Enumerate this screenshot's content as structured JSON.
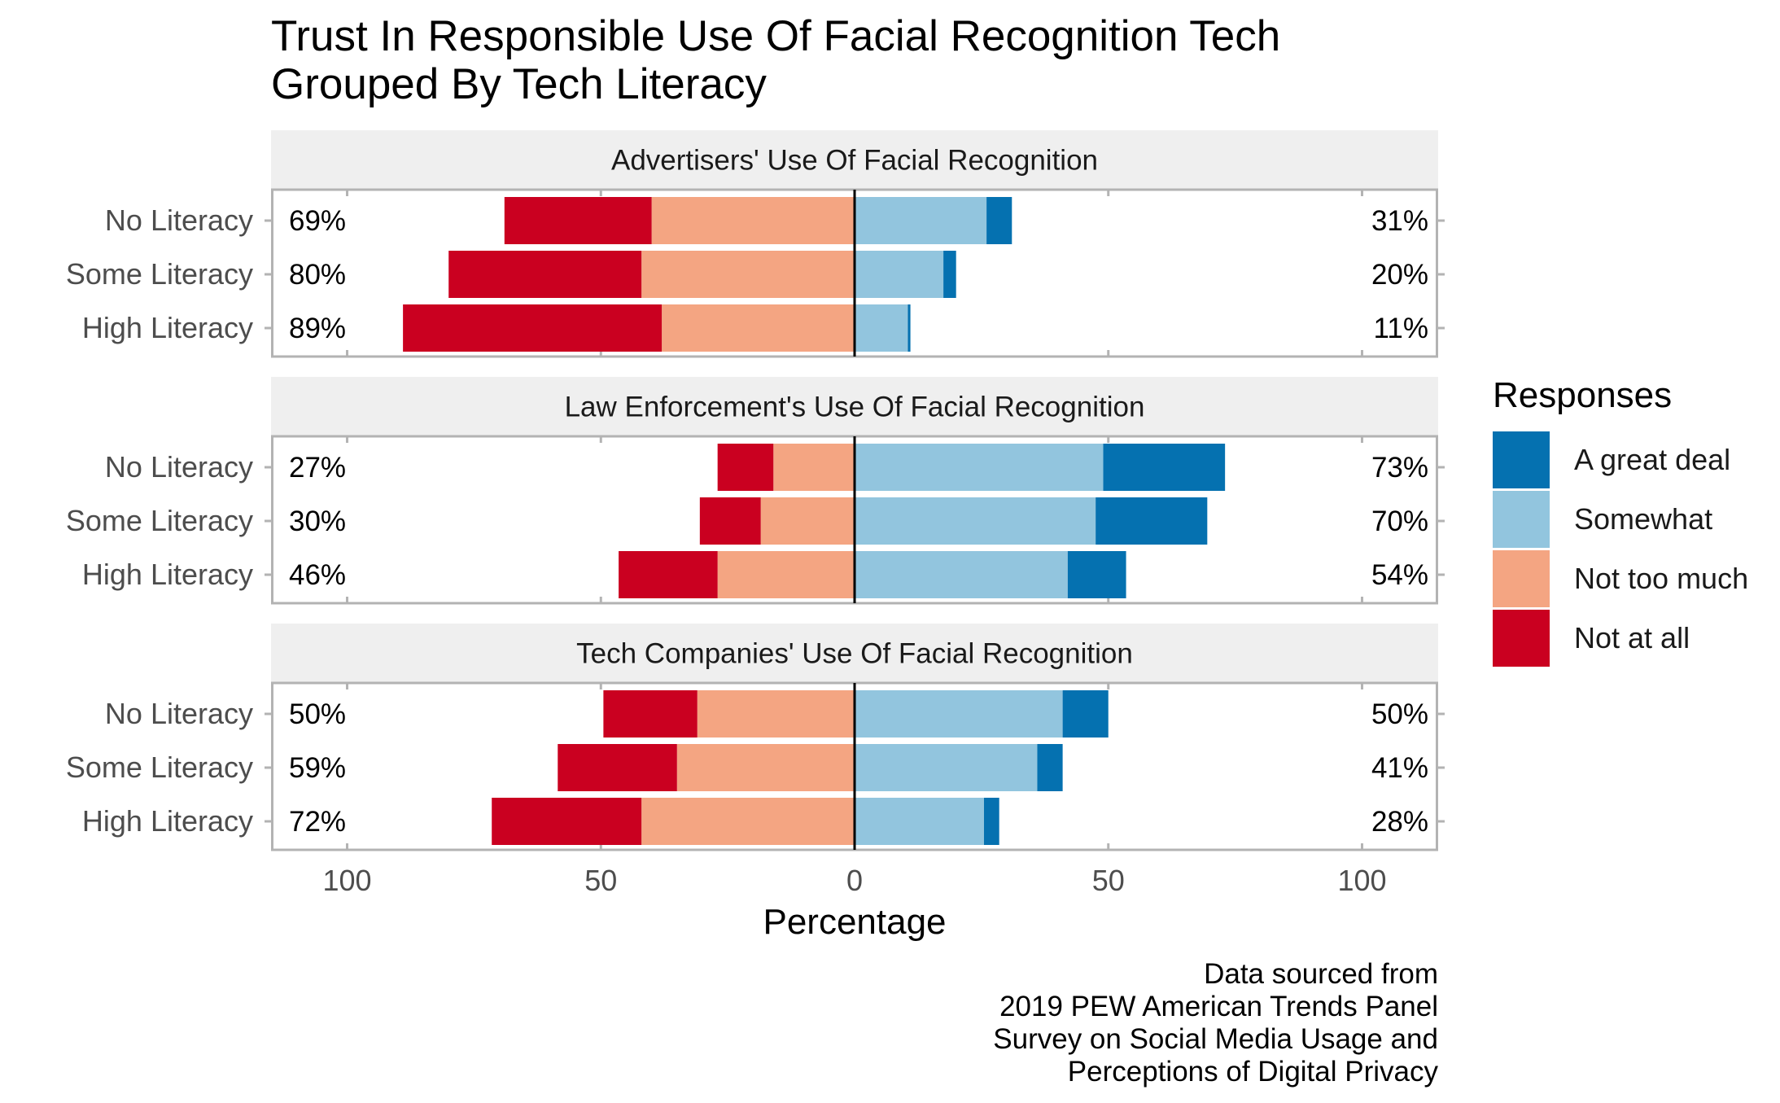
{
  "title": [
    "Trust In Responsible Use Of Facial Recognition Tech",
    "Grouped By Tech Literacy"
  ],
  "caption": [
    "Data sourced from",
    "2019 PEW American Trends Panel",
    "Survey on Social Media Usage and",
    "Perceptions of Digital Privacy"
  ],
  "legend": {
    "title": "Responses",
    "items": [
      {
        "label": "A great deal",
        "color": "#0571b0"
      },
      {
        "label": "Somewhat",
        "color": "#92c5de"
      },
      {
        "label": "Not too much",
        "color": "#f4a582"
      },
      {
        "label": "Not at all",
        "color": "#ca0020"
      }
    ]
  },
  "chart_data": {
    "type": "bar",
    "orientation": "horizontal",
    "stacking": "diverging",
    "xlabel": "Percentage",
    "xlim": [
      -115,
      115
    ],
    "x_ticks": [
      -100,
      -50,
      0,
      50,
      100
    ],
    "x_tick_labels": [
      "100",
      "50",
      "0",
      "50",
      "100"
    ],
    "categories": [
      "No Literacy",
      "Some Literacy",
      "High Literacy"
    ],
    "legend_position": "right",
    "colors": {
      "A great deal": "#0571b0",
      "Somewhat": "#92c5de",
      "Not too much": "#f4a582",
      "Not at all": "#ca0020"
    },
    "panels": [
      {
        "title": "Advertisers' Use Of Facial Recognition",
        "rows": [
          {
            "category": "No Literacy",
            "A great deal": 5,
            "Somewhat": 26,
            "Not too much": 40,
            "Not at all": 29,
            "left_label": "69%",
            "right_label": "31%"
          },
          {
            "category": "Some Literacy",
            "A great deal": 2.5,
            "Somewhat": 17.5,
            "Not too much": 42,
            "Not at all": 38,
            "left_label": "80%",
            "right_label": "20%"
          },
          {
            "category": "High Literacy",
            "A great deal": 0.5,
            "Somewhat": 10.5,
            "Not too much": 38,
            "Not at all": 51,
            "left_label": "89%",
            "right_label": "11%"
          }
        ]
      },
      {
        "title": "Law Enforcement's Use Of Facial Recognition",
        "rows": [
          {
            "category": "No Literacy",
            "A great deal": 24,
            "Somewhat": 49,
            "Not too much": 16,
            "Not at all": 11,
            "left_label": "27%",
            "right_label": "73%"
          },
          {
            "category": "Some Literacy",
            "A great deal": 22,
            "Somewhat": 47.5,
            "Not too much": 18.5,
            "Not at all": 12,
            "left_label": "30%",
            "right_label": "70%"
          },
          {
            "category": "High Literacy",
            "A great deal": 11.5,
            "Somewhat": 42,
            "Not too much": 27,
            "Not at all": 19.5,
            "left_label": "46%",
            "right_label": "54%"
          }
        ]
      },
      {
        "title": "Tech Companies' Use Of Facial Recognition",
        "rows": [
          {
            "category": "No Literacy",
            "A great deal": 9,
            "Somewhat": 41,
            "Not too much": 31,
            "Not at all": 18.5,
            "left_label": "50%",
            "right_label": "50%"
          },
          {
            "category": "Some Literacy",
            "A great deal": 5,
            "Somewhat": 36,
            "Not too much": 35,
            "Not at all": 23.5,
            "left_label": "59%",
            "right_label": "41%"
          },
          {
            "category": "High Literacy",
            "A great deal": 3,
            "Somewhat": 25.5,
            "Not too much": 42,
            "Not at all": 29.5,
            "left_label": "72%",
            "right_label": "28%"
          }
        ]
      }
    ]
  }
}
